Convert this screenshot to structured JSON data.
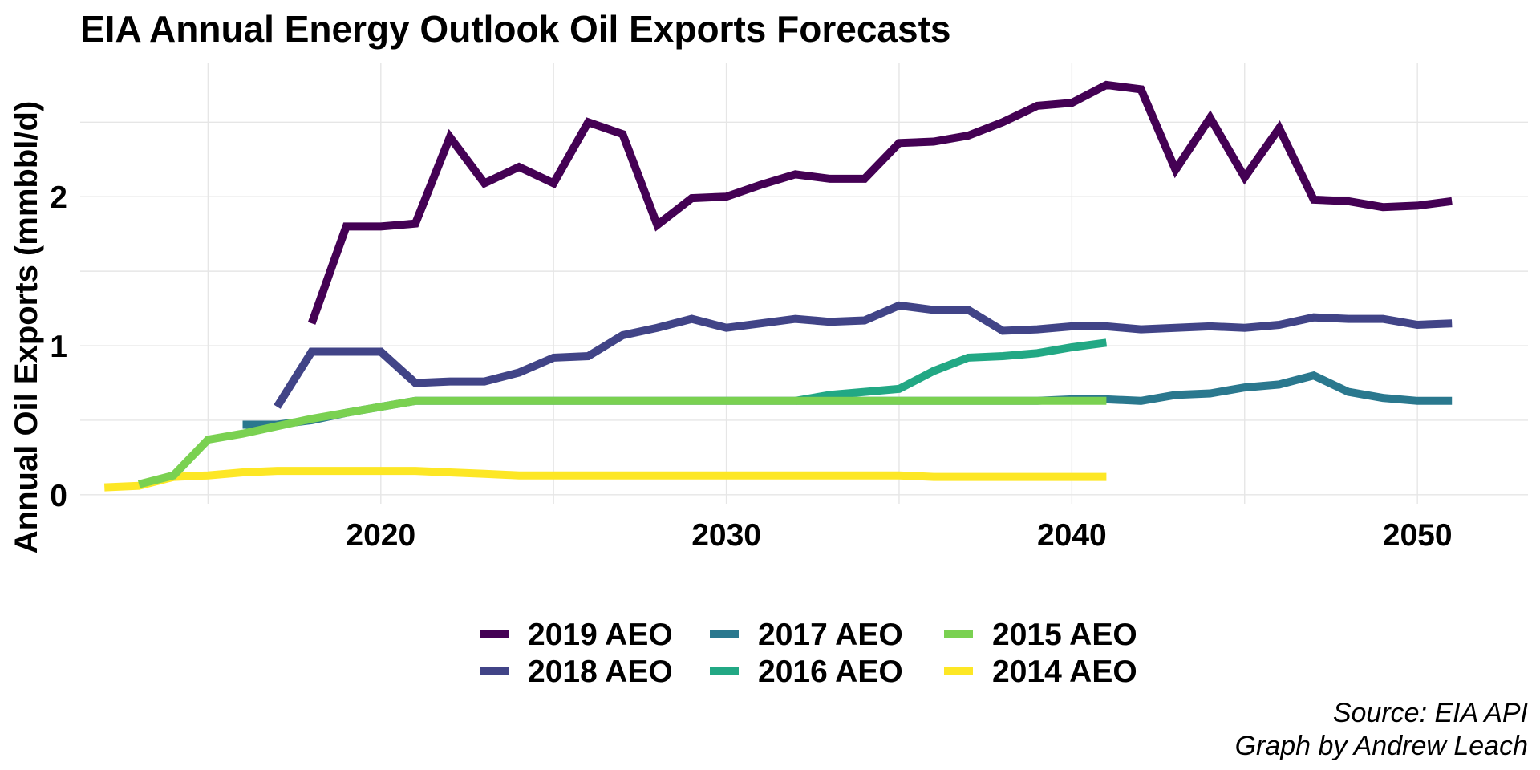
{
  "chart_data": {
    "type": "line",
    "title": "EIA Annual Energy Outlook Oil Exports Forecasts",
    "xlabel": "",
    "ylabel": "Annual Oil Exports (mmbbl/d)",
    "xlim": [
      2011.3,
      2053.2
    ],
    "ylim": [
      -0.06,
      2.9
    ],
    "x_ticks": [
      2020,
      2030,
      2040,
      2050
    ],
    "x_tick_labels": [
      "2020",
      "2030",
      "2040",
      "2050"
    ],
    "y_ticks": [
      0,
      1,
      2
    ],
    "y_tick_labels": [
      "0",
      "1",
      "2"
    ],
    "grid": true,
    "legend_position": "bottom",
    "series": [
      {
        "name": "2019 AEO",
        "color": "#440154",
        "x": [
          2018,
          2019,
          2020,
          2021,
          2022,
          2023,
          2024,
          2025,
          2026,
          2027,
          2028,
          2029,
          2030,
          2031,
          2032,
          2033,
          2034,
          2035,
          2036,
          2037,
          2038,
          2039,
          2040,
          2041,
          2042,
          2043,
          2044,
          2045,
          2046,
          2047,
          2048,
          2049,
          2050,
          2051
        ],
        "y": [
          1.15,
          1.8,
          1.8,
          1.82,
          2.4,
          2.09,
          2.2,
          2.09,
          2.5,
          2.42,
          1.81,
          1.99,
          2.0,
          2.08,
          2.15,
          2.12,
          2.12,
          2.36,
          2.37,
          2.41,
          2.5,
          2.61,
          2.63,
          2.75,
          2.72,
          2.18,
          2.53,
          2.13,
          2.46,
          1.98,
          1.97,
          1.93,
          1.94,
          1.97
        ]
      },
      {
        "name": "2018 AEO",
        "color": "#414487",
        "x": [
          2017,
          2018,
          2019,
          2020,
          2021,
          2022,
          2023,
          2024,
          2025,
          2026,
          2027,
          2028,
          2029,
          2030,
          2031,
          2032,
          2033,
          2034,
          2035,
          2036,
          2037,
          2038,
          2039,
          2040,
          2041,
          2042,
          2043,
          2044,
          2045,
          2046,
          2047,
          2048,
          2049,
          2050,
          2051
        ],
        "y": [
          0.59,
          0.96,
          0.96,
          0.96,
          0.75,
          0.76,
          0.76,
          0.82,
          0.92,
          0.93,
          1.07,
          1.12,
          1.18,
          1.12,
          1.15,
          1.18,
          1.16,
          1.17,
          1.27,
          1.24,
          1.24,
          1.1,
          1.11,
          1.13,
          1.13,
          1.11,
          1.12,
          1.13,
          1.12,
          1.14,
          1.19,
          1.18,
          1.18,
          1.14,
          1.15
        ]
      },
      {
        "name": "2017 AEO",
        "color": "#2A788E",
        "x": [
          2016,
          2017,
          2018,
          2019,
          2020,
          2021,
          2022,
          2023,
          2024,
          2025,
          2026,
          2027,
          2028,
          2029,
          2030,
          2031,
          2032,
          2033,
          2034,
          2035,
          2036,
          2037,
          2038,
          2039,
          2040,
          2041,
          2042,
          2043,
          2044,
          2045,
          2046,
          2047,
          2048,
          2049,
          2050,
          2051
        ],
        "y": [
          0.47,
          0.47,
          0.5,
          0.55,
          0.59,
          0.63,
          0.63,
          0.63,
          0.63,
          0.63,
          0.63,
          0.63,
          0.63,
          0.63,
          0.63,
          0.63,
          0.63,
          0.63,
          0.63,
          0.63,
          0.63,
          0.63,
          0.63,
          0.63,
          0.64,
          0.64,
          0.63,
          0.67,
          0.68,
          0.72,
          0.74,
          0.8,
          0.69,
          0.65,
          0.63,
          0.63
        ]
      },
      {
        "name": "2016 AEO",
        "color": "#22A884",
        "x": [
          2032,
          2033,
          2034,
          2035,
          2036,
          2037,
          2038,
          2039,
          2040,
          2041
        ],
        "y": [
          0.63,
          0.67,
          0.69,
          0.71,
          0.83,
          0.92,
          0.93,
          0.95,
          0.99,
          1.02
        ]
      },
      {
        "name": "2015 AEO",
        "color": "#7AD151",
        "x": [
          2013,
          2014,
          2015,
          2016,
          2017,
          2018,
          2019,
          2020,
          2021,
          2022,
          2023,
          2024,
          2025,
          2026,
          2027,
          2028,
          2029,
          2030,
          2031,
          2032,
          2033,
          2034,
          2035,
          2036,
          2037,
          2038,
          2039,
          2040,
          2041
        ],
        "y": [
          0.07,
          0.13,
          0.37,
          0.41,
          0.46,
          0.51,
          0.55,
          0.59,
          0.63,
          0.63,
          0.63,
          0.63,
          0.63,
          0.63,
          0.63,
          0.63,
          0.63,
          0.63,
          0.63,
          0.63,
          0.63,
          0.63,
          0.63,
          0.63,
          0.63,
          0.63,
          0.63,
          0.63,
          0.63
        ]
      },
      {
        "name": "2014 AEO",
        "color": "#FDE725",
        "x": [
          2012,
          2013,
          2014,
          2015,
          2016,
          2017,
          2018,
          2019,
          2020,
          2021,
          2022,
          2023,
          2024,
          2025,
          2026,
          2027,
          2028,
          2029,
          2030,
          2031,
          2032,
          2033,
          2034,
          2035,
          2036,
          2037,
          2038,
          2039,
          2040,
          2041
        ],
        "y": [
          0.05,
          0.06,
          0.12,
          0.13,
          0.15,
          0.16,
          0.16,
          0.16,
          0.16,
          0.16,
          0.15,
          0.14,
          0.13,
          0.13,
          0.13,
          0.13,
          0.13,
          0.13,
          0.13,
          0.13,
          0.13,
          0.13,
          0.13,
          0.13,
          0.12,
          0.12,
          0.12,
          0.12,
          0.12,
          0.12
        ]
      }
    ],
    "legend_order": [
      "2019 AEO",
      "2018 AEO",
      "2017 AEO",
      "2016 AEO",
      "2015 AEO",
      "2014 AEO"
    ],
    "draw_order": [
      "2014 AEO",
      "2016 AEO",
      "2017 AEO",
      "2015 AEO",
      "2018 AEO",
      "2019 AEO"
    ],
    "caption_lines": [
      "Source: EIA API",
      "Graph by Andrew Leach"
    ]
  }
}
